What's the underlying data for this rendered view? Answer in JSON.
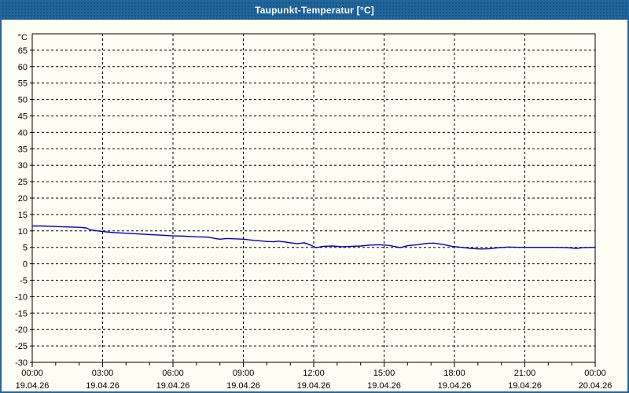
{
  "window": {
    "title": "Taupunkt-Temperatur [°C]"
  },
  "colors": {
    "frame_blue": "#20669c",
    "body_background": "#fdfdf4",
    "curve_blue": "#0000c8",
    "grid_color": "#000000",
    "title_text": "#ffffff"
  },
  "chart_data": {
    "type": "line",
    "title": "Taupunkt-Temperatur [°C]",
    "unit_label": "°C",
    "grid": "dashed",
    "legend": "none",
    "x_axis": {
      "min_hours": 0,
      "max_hours": 24,
      "minor_tick_hours": 1,
      "major_tick_hours": 3,
      "ticks": [
        {
          "hour": 0,
          "time": "00:00",
          "date": "19.04.26"
        },
        {
          "hour": 3,
          "time": "03:00",
          "date": "19.04.26"
        },
        {
          "hour": 6,
          "time": "06:00",
          "date": "19.04.26"
        },
        {
          "hour": 9,
          "time": "09:00",
          "date": "19.04.26"
        },
        {
          "hour": 12,
          "time": "12:00",
          "date": "19.04.26"
        },
        {
          "hour": 15,
          "time": "15:00",
          "date": "19.04.26"
        },
        {
          "hour": 18,
          "time": "18:00",
          "date": "19.04.26"
        },
        {
          "hour": 21,
          "time": "21:00",
          "date": "19.04.26"
        },
        {
          "hour": 24,
          "time": "00:00",
          "date": "20.04.26"
        }
      ]
    },
    "y_axis": {
      "min": -30,
      "max": 70,
      "tick_step": 5,
      "tick_values": [
        65,
        60,
        55,
        50,
        45,
        40,
        35,
        30,
        25,
        20,
        15,
        10,
        5,
        0,
        -5,
        -10,
        -15,
        -20,
        -25,
        -30
      ]
    },
    "series": [
      {
        "name": "Taupunkt-Temperatur",
        "color": "#0000c8",
        "points": [
          [
            0,
            11.5
          ],
          [
            0.4,
            11.5
          ],
          [
            0.8,
            11.4
          ],
          [
            1.2,
            11.3
          ],
          [
            1.6,
            11.2
          ],
          [
            2.0,
            11.1
          ],
          [
            2.3,
            10.9
          ],
          [
            2.5,
            10.3
          ],
          [
            2.8,
            10.0
          ],
          [
            3.0,
            9.8
          ],
          [
            3.5,
            9.5
          ],
          [
            4.0,
            9.3
          ],
          [
            4.5,
            9.1
          ],
          [
            5.0,
            8.9
          ],
          [
            5.5,
            8.7
          ],
          [
            6.0,
            8.5
          ],
          [
            6.5,
            8.4
          ],
          [
            7.0,
            8.2
          ],
          [
            7.5,
            8.1
          ],
          [
            7.8,
            7.7
          ],
          [
            8.0,
            7.5
          ],
          [
            8.3,
            7.7
          ],
          [
            8.6,
            7.6
          ],
          [
            9.0,
            7.5
          ],
          [
            9.5,
            7.1
          ],
          [
            10.0,
            6.8
          ],
          [
            10.3,
            6.7
          ],
          [
            10.5,
            6.9
          ],
          [
            11.0,
            6.4
          ],
          [
            11.3,
            6.1
          ],
          [
            11.6,
            6.4
          ],
          [
            11.9,
            5.6
          ],
          [
            12.1,
            4.9
          ],
          [
            12.4,
            5.3
          ],
          [
            12.8,
            5.4
          ],
          [
            13.2,
            5.2
          ],
          [
            13.6,
            5.3
          ],
          [
            14.0,
            5.4
          ],
          [
            14.4,
            5.7
          ],
          [
            14.8,
            5.8
          ],
          [
            15.2,
            5.6
          ],
          [
            15.5,
            5.2
          ],
          [
            15.7,
            4.9
          ],
          [
            16.0,
            5.5
          ],
          [
            16.4,
            5.8
          ],
          [
            16.8,
            6.2
          ],
          [
            17.1,
            6.3
          ],
          [
            17.5,
            5.9
          ],
          [
            17.9,
            5.3
          ],
          [
            18.3,
            5.0
          ],
          [
            18.7,
            4.7
          ],
          [
            19.1,
            4.5
          ],
          [
            19.5,
            4.6
          ],
          [
            19.9,
            4.9
          ],
          [
            20.3,
            5.1
          ],
          [
            20.8,
            5.0
          ],
          [
            21.5,
            5.0
          ],
          [
            22.2,
            5.0
          ],
          [
            22.8,
            4.9
          ],
          [
            23.2,
            4.7
          ],
          [
            23.5,
            4.9
          ],
          [
            24,
            5.0
          ]
        ]
      }
    ]
  }
}
